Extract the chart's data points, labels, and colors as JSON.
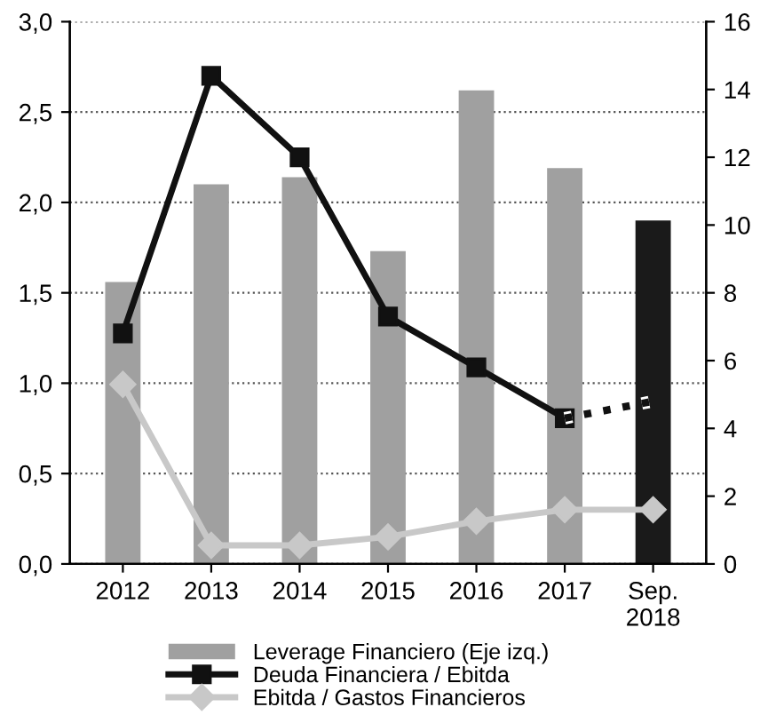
{
  "chart_data": {
    "type": "bar",
    "categories": [
      "2012",
      "2013",
      "2014",
      "2015",
      "2016",
      "2017",
      "Sep.\n2018"
    ],
    "ylim": [
      0,
      3
    ],
    "yticks": [
      {
        "value": 0,
        "label": "0,0"
      },
      {
        "value": 0.5,
        "label": "0,5"
      },
      {
        "value": 1,
        "label": "1,0"
      },
      {
        "value": 1.5,
        "label": "1,5"
      },
      {
        "value": 2,
        "label": "2,0"
      },
      {
        "value": 2.5,
        "label": "2,5"
      },
      {
        "value": 3,
        "label": "3,0"
      }
    ],
    "y2lim": [
      0,
      16
    ],
    "y2ticks": [
      0,
      2,
      4,
      6,
      8,
      10,
      12,
      14,
      16
    ],
    "grid": "y",
    "legend": "bottom",
    "series": [
      {
        "name": "Leverage Financiero (Eje izq.)",
        "color": "#a0a0a0",
        "colors": [
          "#a0a0a0",
          "#a0a0a0",
          "#a0a0a0",
          "#a0a0a0",
          "#a0a0a0",
          "#a0a0a0",
          "#1a1a1a"
        ],
        "values": [
          1.56,
          2.1,
          2.14,
          1.73,
          2.62,
          2.19,
          1.9
        ]
      },
      {
        "name": "Deuda Financiera / Ebitda",
        "type": "line",
        "axis": "y2",
        "color": "#111111",
        "marker": "square",
        "line_style": "solid",
        "values": [
          6.8,
          14.4,
          12.0,
          7.3,
          5.8,
          4.3,
          null
        ]
      },
      {
        "type": "line",
        "axis": "y2",
        "color": "#111111",
        "marker": "none",
        "line_style": "dotted",
        "values": [
          null,
          null,
          null,
          null,
          null,
          4.3,
          4.8
        ]
      },
      {
        "name": "Ebitda / Gastos Financieros",
        "type": "line",
        "axis": "y2",
        "color": "#c8c8c8",
        "marker": "diamond",
        "line_style": "solid",
        "values": [
          5.3,
          0.55,
          0.55,
          0.8,
          1.26,
          1.6,
          1.6
        ]
      }
    ]
  }
}
